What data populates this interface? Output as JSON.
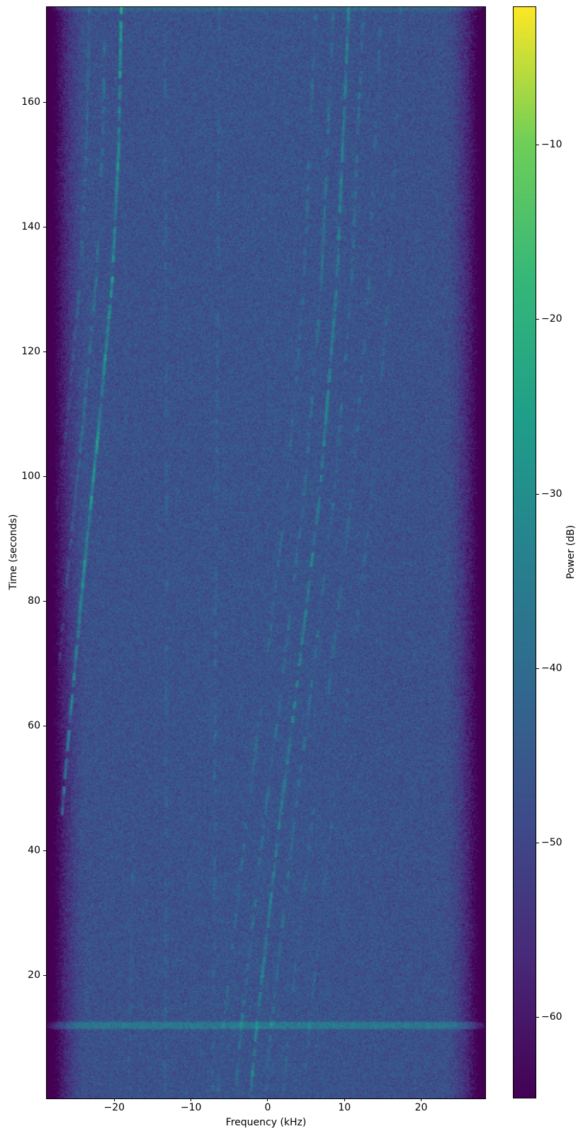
{
  "figure": {
    "background": "#ffffff"
  },
  "chart_data": {
    "type": "heatmap",
    "subtype": "spectrogram",
    "title": "",
    "xlabel": "Frequency (kHz)",
    "ylabel": "Time (seconds)",
    "xlim": [
      -28.8,
      28.35
    ],
    "ylim": [
      0.3,
      175.3
    ],
    "x_tick_values": [
      -20,
      -10,
      0,
      10,
      20
    ],
    "x_tick_labels": [
      "−20",
      "−10",
      "0",
      "10",
      "20"
    ],
    "y_tick_values": [
      20,
      40,
      60,
      80,
      100,
      120,
      140,
      160
    ],
    "y_tick_labels": [
      "20",
      "40",
      "60",
      "80",
      "100",
      "120",
      "140",
      "160"
    ],
    "colormap": "viridis",
    "colormap_stops": [
      "#440154",
      "#482878",
      "#3e4a89",
      "#31688e",
      "#26828e",
      "#1f9e89",
      "#35b779",
      "#6ece58",
      "#fde725"
    ],
    "colorbar": {
      "label": "Power (dB)",
      "tick_values": [
        -10,
        -20,
        -30,
        -40,
        -50,
        -60
      ],
      "tick_labels": [
        "−10",
        "−20",
        "−30",
        "−40",
        "−50",
        "−60"
      ],
      "vmin": -64.6,
      "vmax": -2.1
    },
    "background": {
      "noise_floor_db": -47.5,
      "noise_sigma_db": 2.3,
      "center_boost_db": 1.0,
      "center_width_khz": 20,
      "top_edge_boost_db": 5.5,
      "top_edge_time_s": 174.4
    },
    "band_edges": {
      "left_start_khz": -23.6,
      "right_start_khz": 23.0,
      "max_attenuation_db": 27,
      "rolloff_exponent": 1.7
    },
    "features": {
      "wideband_burst": {
        "time_s": 12.0,
        "half_width_s": 0.62,
        "boost_db": 10.5
      },
      "tracks": [
        {
          "name": "left-doppler-main",
          "boost_db": 16,
          "duty": 0.85,
          "points": [
            [
              175.3,
              -19.1
            ],
            [
              153.7,
              -19.4
            ],
            [
              131,
              -20.3
            ],
            [
              108.3,
              -22.0
            ],
            [
              85.6,
              -23.9
            ],
            [
              68.5,
              -25.2
            ],
            [
              53.7,
              -26.3
            ],
            [
              45.8,
              -26.8
            ]
          ]
        },
        {
          "name": "left-doppler-b",
          "boost_db": 7,
          "duty": 0.55,
          "points": [
            [
              175.3,
              -21.2
            ],
            [
              153.7,
              -21.5
            ],
            [
              131,
              -22.4
            ],
            [
              108.3,
              -24.1
            ],
            [
              85.6,
              -26.0
            ],
            [
              70,
              -27.2
            ]
          ]
        },
        {
          "name": "left-doppler-c",
          "boost_db": 5.5,
          "duty": 0.45,
          "points": [
            [
              175.3,
              -23.3
            ],
            [
              153.7,
              -23.6
            ],
            [
              131,
              -24.5
            ],
            [
              108.3,
              -26.2
            ],
            [
              92,
              -27.8
            ]
          ]
        },
        {
          "name": "carrier-minus13",
          "boost_db": 3.8,
          "duty": 0.35,
          "points": [
            [
              175.3,
              -13.4
            ],
            [
              90,
              -13.2
            ],
            [
              40,
              -13.3
            ],
            [
              0.3,
              -13.4
            ]
          ]
        },
        {
          "name": "carrier-minus6",
          "boost_db": 3.8,
          "duty": 0.4,
          "points": [
            [
              175.3,
              -6.3
            ],
            [
              100,
              -6.7
            ],
            [
              56,
              -6.9
            ],
            [
              0.3,
              -7.2
            ]
          ]
        },
        {
          "name": "carrier-minus17-low",
          "boost_db": 3.5,
          "duty": 0.4,
          "points": [
            [
              45,
              -17.5
            ],
            [
              0.3,
              -18.2
            ]
          ]
        },
        {
          "name": "center-doppler-main",
          "boost_db": 11,
          "duty": 0.8,
          "points": [
            [
              175.3,
              10.5
            ],
            [
              129.9,
              8.9
            ],
            [
              96.9,
              6.7
            ],
            [
              62.9,
              3.4
            ],
            [
              45.8,
              1.6
            ],
            [
              11.7,
              -1.5
            ],
            [
              0.3,
              -2.3
            ]
          ]
        },
        {
          "name": "center-doppler-b",
          "boost_db": 6.5,
          "duty": 0.55,
          "points": [
            [
              175.3,
              8.5
            ],
            [
              129.9,
              6.9
            ],
            [
              96.9,
              4.7
            ],
            [
              62.9,
              1.4
            ],
            [
              45.8,
              -0.4
            ],
            [
              11.7,
              -3.5
            ],
            [
              0.3,
              -4.3
            ]
          ]
        },
        {
          "name": "center-doppler-c",
          "boost_db": 5.5,
          "duty": 0.45,
          "points": [
            [
              175.3,
              6.2
            ],
            [
              129.9,
              4.6
            ],
            [
              96.9,
              2.4
            ],
            [
              62.9,
              -0.9
            ],
            [
              45.8,
              -2.7
            ],
            [
              11.7,
              -5.8
            ],
            [
              0.3,
              -6.6
            ]
          ]
        },
        {
          "name": "center-doppler-d",
          "boost_db": 6,
          "duty": 0.5,
          "points": [
            [
              175.3,
              12.4
            ],
            [
              129.9,
              10.8
            ],
            [
              96.9,
              8.6
            ],
            [
              62.9,
              5.3
            ],
            [
              45.8,
              3.5
            ],
            [
              11.7,
              0.4
            ],
            [
              0.3,
              -0.4
            ]
          ]
        },
        {
          "name": "center-doppler-e",
          "boost_db": 5,
          "duty": 0.4,
          "points": [
            [
              175.3,
              14.7
            ],
            [
              129.9,
              13.1
            ],
            [
              96.9,
              10.9
            ],
            [
              62.9,
              7.6
            ],
            [
              45.8,
              5.8
            ],
            [
              11.7,
              2.7
            ],
            [
              0.3,
              1.9
            ]
          ]
        },
        {
          "name": "center-doppler-f",
          "boost_db": 4,
          "duty": 0.3,
          "points": [
            [
              175.3,
              17.3
            ],
            [
              129.9,
              15.7
            ],
            [
              96.9,
              13.5
            ],
            [
              62.9,
              10.2
            ],
            [
              45.8,
              8.4
            ],
            [
              11.7,
              5.3
            ],
            [
              0.3,
              4.5
            ]
          ]
        }
      ]
    }
  }
}
